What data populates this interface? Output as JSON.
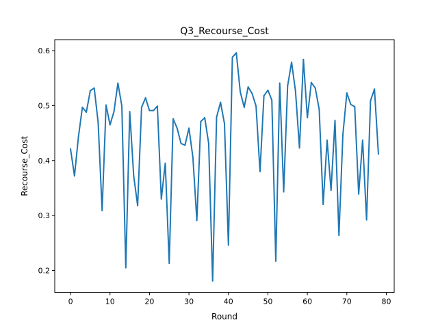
{
  "chart_data": {
    "type": "line",
    "title": "Q3_Recourse_Cost",
    "xlabel": "Round",
    "ylabel": "Recourse_Cost",
    "xlim": [
      -4,
      82
    ],
    "ylim": [
      0.16,
      0.62
    ],
    "xticks": [
      0,
      10,
      20,
      30,
      40,
      50,
      60,
      70,
      80
    ],
    "xtick_labels": [
      "0",
      "10",
      "20",
      "30",
      "40",
      "50",
      "60",
      "70",
      "80"
    ],
    "yticks": [
      0.2,
      0.3,
      0.4,
      0.5,
      0.6
    ],
    "ytick_labels": [
      "0.2",
      "0.3",
      "0.4",
      "0.5",
      "0.6"
    ],
    "grid": false,
    "series": [
      {
        "name": "Q3_Recourse_Cost",
        "color": "#1f77b4",
        "x": [
          0,
          1,
          2,
          3,
          4,
          5,
          6,
          7,
          8,
          9,
          10,
          11,
          12,
          13,
          14,
          15,
          16,
          17,
          18,
          19,
          20,
          21,
          22,
          23,
          24,
          25,
          26,
          27,
          28,
          29,
          30,
          31,
          32,
          33,
          34,
          35,
          36,
          37,
          38,
          39,
          40,
          41,
          42,
          43,
          44,
          45,
          46,
          47,
          48,
          49,
          50,
          51,
          52,
          53,
          54,
          55,
          56,
          57,
          58,
          59,
          60,
          61,
          62,
          63,
          64,
          65,
          66,
          67,
          68,
          69,
          70,
          71,
          72,
          73,
          74,
          75,
          76,
          77,
          78
        ],
        "values": [
          0.421,
          0.372,
          0.443,
          0.497,
          0.488,
          0.527,
          0.532,
          0.469,
          0.309,
          0.501,
          0.465,
          0.489,
          0.541,
          0.499,
          0.205,
          0.489,
          0.372,
          0.318,
          0.497,
          0.514,
          0.491,
          0.491,
          0.499,
          0.33,
          0.395,
          0.213,
          0.476,
          0.459,
          0.431,
          0.428,
          0.459,
          0.406,
          0.291,
          0.471,
          0.478,
          0.431,
          0.181,
          0.479,
          0.506,
          0.467,
          0.246,
          0.588,
          0.596,
          0.525,
          0.497,
          0.534,
          0.522,
          0.499,
          0.38,
          0.518,
          0.528,
          0.51,
          0.217,
          0.541,
          0.343,
          0.536,
          0.579,
          0.526,
          0.423,
          0.584,
          0.478,
          0.542,
          0.532,
          0.493,
          0.32,
          0.437,
          0.346,
          0.473,
          0.264,
          0.447,
          0.523,
          0.502,
          0.498,
          0.339,
          0.437,
          0.292,
          0.509,
          0.53,
          0.412
        ]
      }
    ]
  }
}
